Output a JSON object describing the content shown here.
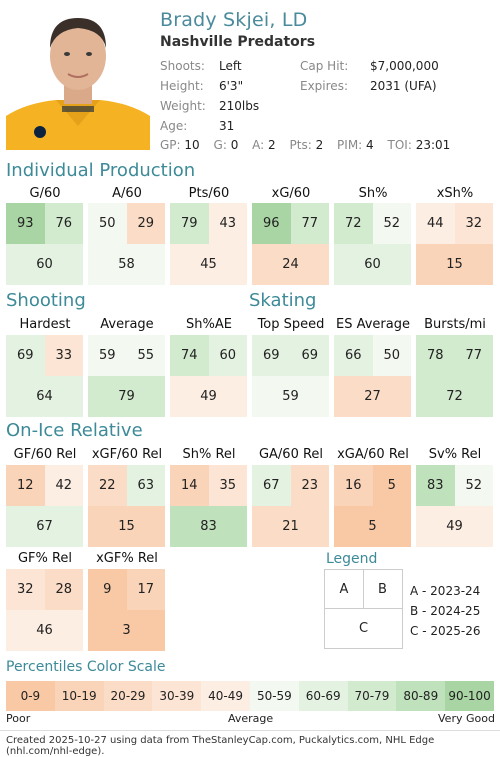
{
  "player": {
    "name": "Brady Skjei, LD",
    "team": "Nashville Predators",
    "info": [
      {
        "label": "Shoots:",
        "value": "Left"
      },
      {
        "label": "Height:",
        "value": "6'3\""
      },
      {
        "label": "Weight:",
        "value": "210lbs"
      },
      {
        "label": "Age:",
        "value": "31"
      }
    ],
    "contract": [
      {
        "label": "Cap Hit:",
        "value": "$7,000,000"
      },
      {
        "label": "Expires:",
        "value": "2031 (UFA)"
      }
    ],
    "stats": [
      {
        "label": "GP:",
        "value": "10"
      },
      {
        "label": "G:",
        "value": "0"
      },
      {
        "label": "A:",
        "value": "2"
      },
      {
        "label": "Pts:",
        "value": "2"
      },
      {
        "label": "PIM:",
        "value": "4"
      },
      {
        "label": "TOI:",
        "value": "23:01"
      }
    ]
  },
  "sections": {
    "production": "Individual Production",
    "shooting": "Shooting",
    "skating": "Skating",
    "onice": "On-Ice Relative"
  },
  "production": [
    {
      "label": "G/60",
      "a": 93,
      "b": 76,
      "c": 60
    },
    {
      "label": "A/60",
      "a": 50,
      "b": 29,
      "c": 58
    },
    {
      "label": "Pts/60",
      "a": 79,
      "b": 43,
      "c": 45
    },
    {
      "label": "xG/60",
      "a": 96,
      "b": 77,
      "c": 24
    },
    {
      "label": "Sh%",
      "a": 72,
      "b": 52,
      "c": 60
    },
    {
      "label": "xSh%",
      "a": 44,
      "b": 32,
      "c": 15
    }
  ],
  "shooting": [
    {
      "label": "Hardest",
      "a": 69,
      "b": 33,
      "c": 64
    },
    {
      "label": "Average",
      "a": 59,
      "b": 55,
      "c": 79
    },
    {
      "label": "Sh%AE",
      "a": 74,
      "b": 60,
      "c": 49
    }
  ],
  "skating": [
    {
      "label": "Top Speed",
      "a": 69,
      "b": 69,
      "c": 59
    },
    {
      "label": "ES Average",
      "a": 66,
      "b": 50,
      "c": 27
    },
    {
      "label": "Bursts/mi",
      "a": 78,
      "b": 77,
      "c": 72
    }
  ],
  "onice": [
    {
      "label": "GF/60 Rel",
      "a": 12,
      "b": 42,
      "c": 67
    },
    {
      "label": "xGF/60 Rel",
      "a": 22,
      "b": 63,
      "c": 15
    },
    {
      "label": "Sh% Rel",
      "a": 14,
      "b": 35,
      "c": 83
    },
    {
      "label": "GA/60 Rel",
      "a": 67,
      "b": 23,
      "c": 21
    },
    {
      "label": "xGA/60 Rel",
      "a": 16,
      "b": 5,
      "c": 5
    },
    {
      "label": "Sv% Rel",
      "a": 83,
      "b": 52,
      "c": 49
    }
  ],
  "onice2": [
    {
      "label": "GF% Rel",
      "a": 32,
      "b": 28,
      "c": 46
    },
    {
      "label": "xGF% Rel",
      "a": 9,
      "b": 17,
      "c": 3
    }
  ],
  "legend": {
    "title": "Legend",
    "a": "A",
    "b": "B",
    "c": "C",
    "lines": [
      "A - 2023-24",
      "B - 2024-25",
      "C - 2025-26"
    ]
  },
  "scale": {
    "title": "Percentiles Color Scale",
    "bins": [
      "0-9",
      "10-19",
      "20-29",
      "30-39",
      "40-49",
      "50-59",
      "60-69",
      "70-79",
      "80-89",
      "90-100"
    ],
    "colors": [
      "#f9c9a6",
      "#fad4b8",
      "#fbdcc6",
      "#fce5d4",
      "#fdeee4",
      "#f3f8f1",
      "#e3f2e1",
      "#d2ebcf",
      "#bfe1bb",
      "#a9d5a4"
    ],
    "low": "Poor",
    "mid": "Average",
    "high": "Very Good"
  },
  "footer": "Created 2025-10-27 using data from TheStanleyCap.com, Puckalytics.com, NHL Edge (nhl.com/nhl-edge)."
}
